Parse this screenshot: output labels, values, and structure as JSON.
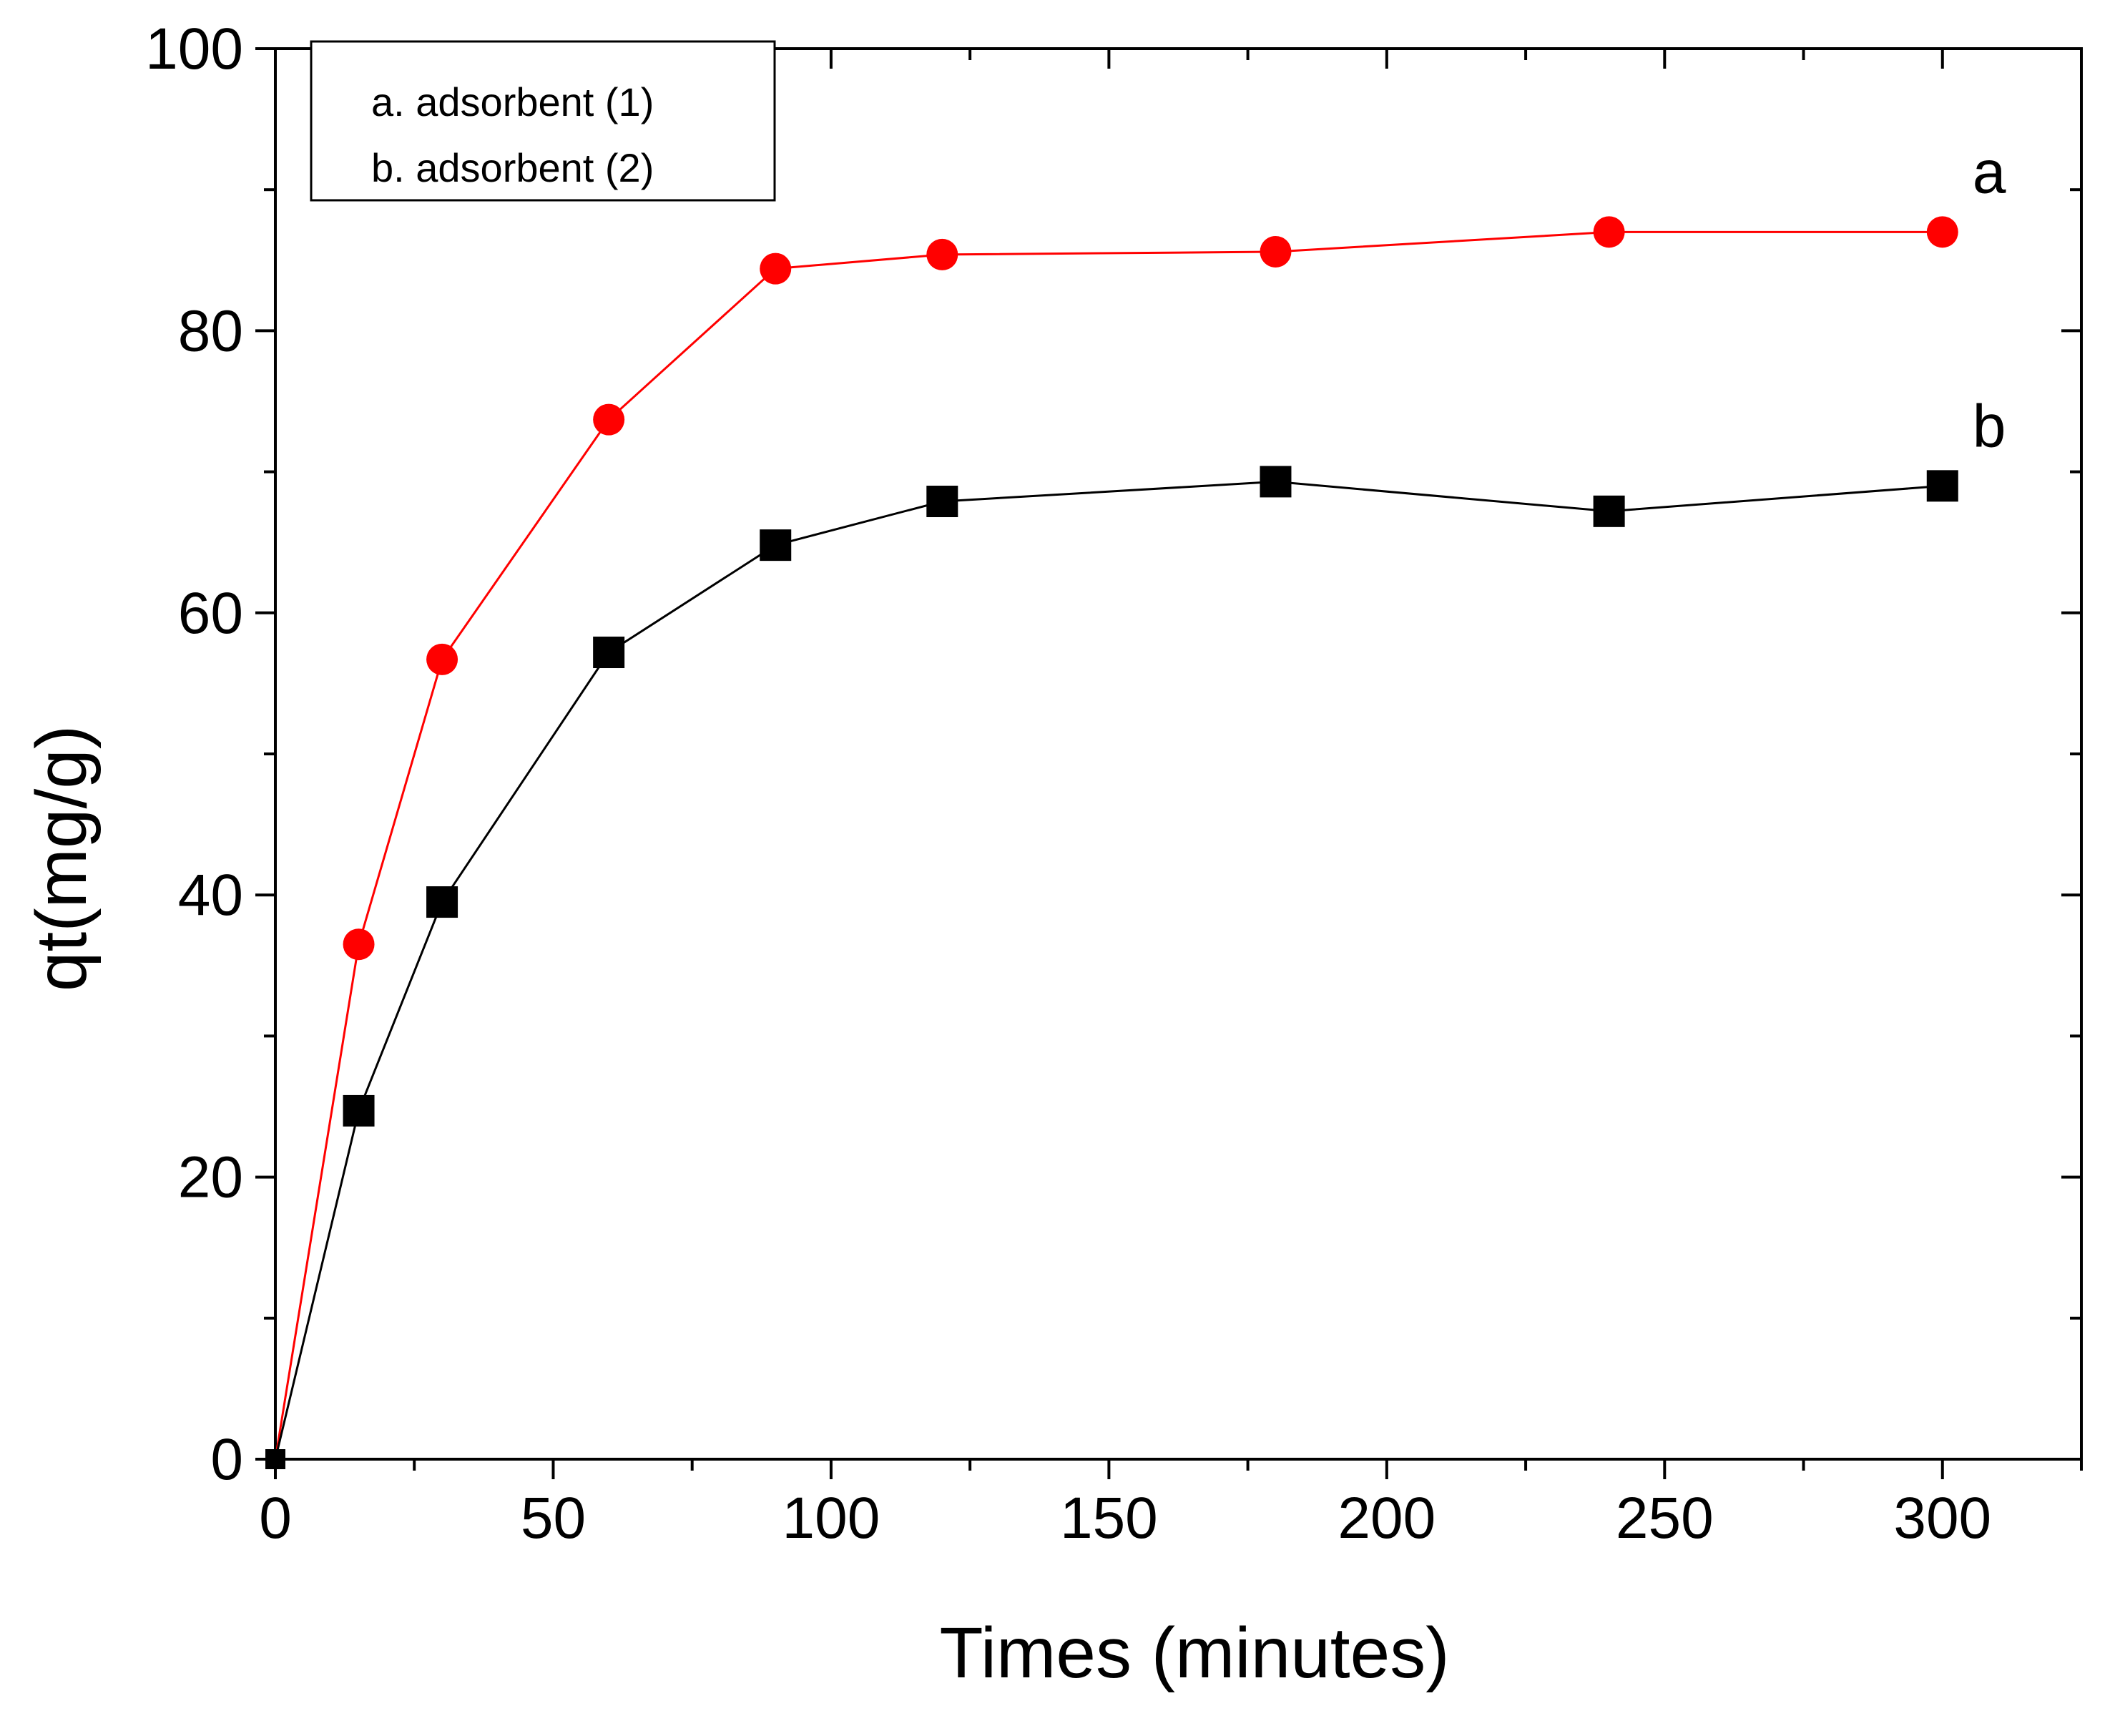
{
  "chart_data": {
    "type": "line",
    "title": "",
    "xlabel": "Times (minutes)",
    "ylabel": "qt(mg/g)",
    "xlim": [
      0,
      325
    ],
    "ylim": [
      0,
      100
    ],
    "x_ticks": [
      0,
      50,
      100,
      150,
      200,
      250,
      300
    ],
    "y_ticks": [
      0,
      20,
      40,
      60,
      80,
      100
    ],
    "x_minor_step": 25,
    "y_minor_step": 10,
    "grid": false,
    "legend_position": "top-left",
    "legend": [
      "a. adsorbent (1)",
      "b. adsorbent (2)"
    ],
    "series": [
      {
        "name": "a. adsorbent (1)",
        "end_label": "a",
        "color": "#ff0000",
        "marker": "circle",
        "x": [
          0,
          15,
          30,
          60,
          90,
          120,
          180,
          240,
          300
        ],
        "values": [
          0,
          36.5,
          56.7,
          73.7,
          84.4,
          85.4,
          85.6,
          87.0,
          87.0
        ]
      },
      {
        "name": "b. adsorbent (2)",
        "end_label": "b",
        "color": "#000000",
        "marker": "square",
        "x": [
          0,
          15,
          30,
          60,
          90,
          120,
          180,
          240,
          300
        ],
        "values": [
          0,
          24.7,
          39.5,
          57.2,
          64.8,
          67.9,
          69.3,
          67.2,
          69.0
        ]
      }
    ]
  }
}
